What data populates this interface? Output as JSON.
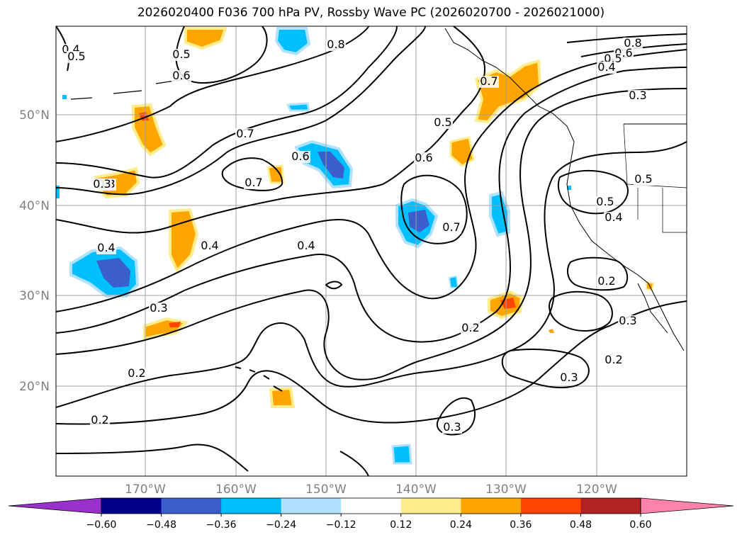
{
  "title": "2026020400 F036 700 hPa PV, Rossby Wave PC (2026020700 - 2026021000)",
  "lat_labels": [
    "50°N",
    "40°N",
    "30°N",
    "20°N"
  ],
  "lon_labels": [
    "170°W",
    "160°W",
    "150°W",
    "140°W",
    "130°W",
    "120°W"
  ],
  "contour_labels": [
    "0.4",
    "0.5",
    "0.5",
    "0.6",
    "0.7",
    "0.7",
    "0.6",
    "0.6",
    "0.5",
    "0.7",
    "0.8",
    "0.8",
    "0.6",
    "0.5",
    "0.4",
    "0.3",
    "0.7",
    "0.4",
    "0.4",
    "0.4",
    "0.3",
    "0.5",
    "0.5",
    "0.4",
    "0.3",
    "0.2",
    "0.2",
    "0.3",
    "0.3",
    "0.2",
    "0.2",
    "0.2",
    "0.3",
    "0.3"
  ],
  "colorbar": {
    "ticks": [
      "−0.60",
      "−0.48",
      "−0.36",
      "−0.24",
      "−0.12",
      "0.12",
      "0.24",
      "0.36",
      "0.48",
      "0.60"
    ],
    "colors": [
      "#9932cc",
      "#00008b",
      "#3a5fcd",
      "#00bfff",
      "#b0e2ff",
      "#ffffff",
      "#ffec8b",
      "#ffa500",
      "#ff4500",
      "#b22222",
      "#ff82ab"
    ]
  }
}
